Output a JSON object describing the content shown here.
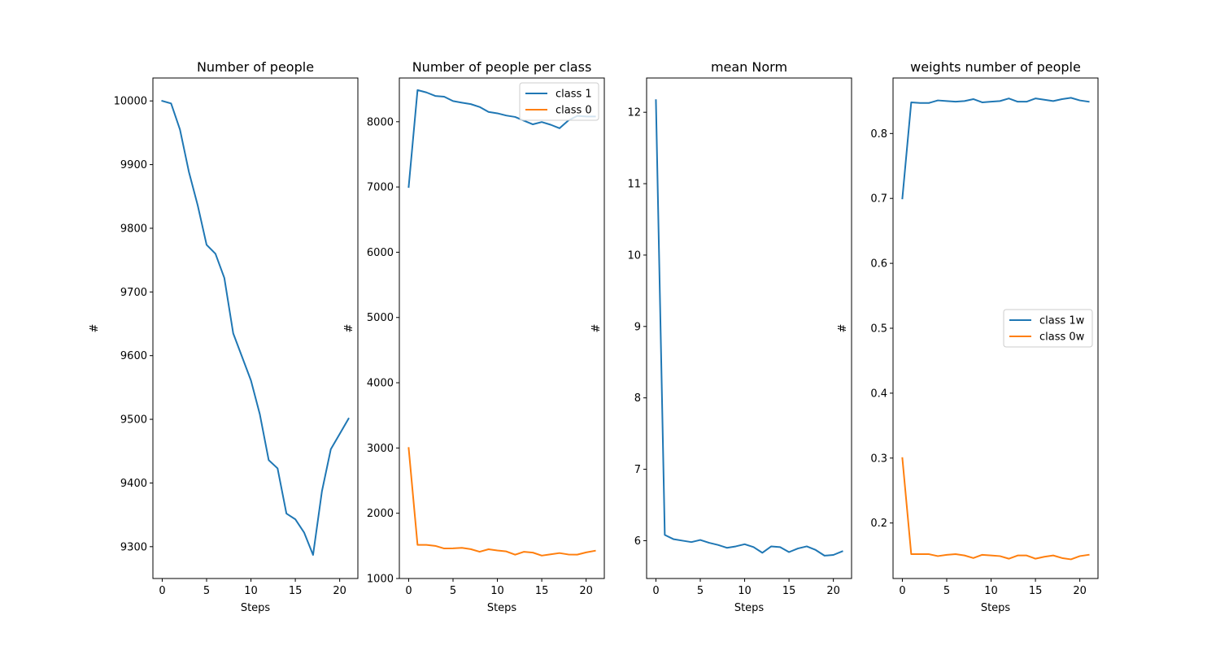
{
  "colors": {
    "series_blue": "#1f77b4",
    "series_orange": "#ff7f0e",
    "axes": "#000000",
    "legend_border": "#cccccc",
    "background": "#ffffff"
  },
  "chart_data": [
    {
      "type": "line",
      "title": "Number of people",
      "xlabel": "Steps",
      "ylabel": "#",
      "x": [
        0,
        1,
        2,
        3,
        4,
        5,
        6,
        7,
        8,
        9,
        10,
        11,
        12,
        13,
        14,
        15,
        16,
        17,
        18,
        19,
        20,
        21
      ],
      "xlim": [
        -1.05,
        22.05
      ],
      "ylim": [
        9250,
        10036
      ],
      "xticks": [
        0,
        5,
        10,
        15,
        20
      ],
      "yticks": [
        9300,
        9400,
        9500,
        9600,
        9700,
        9800,
        9900,
        10000
      ],
      "grid": false,
      "legend": null,
      "series": [
        {
          "color": "#1f77b4",
          "values": [
            10000,
            9996,
            9955,
            9889,
            9836,
            9774,
            9760,
            9722,
            9635,
            9598,
            9561,
            9508,
            9436,
            9423,
            9352,
            9343,
            9322,
            9287,
            9387,
            9453,
            9477,
            9501
          ]
        }
      ]
    },
    {
      "type": "line",
      "title": "Number of people per class",
      "xlabel": "Steps",
      "ylabel": "#",
      "x": [
        0,
        1,
        2,
        3,
        4,
        5,
        6,
        7,
        8,
        9,
        10,
        11,
        12,
        13,
        14,
        15,
        16,
        17,
        18,
        19,
        20,
        21
      ],
      "xlim": [
        -1.05,
        22.05
      ],
      "ylim": [
        1000,
        8670
      ],
      "xticks": [
        0,
        5,
        10,
        15,
        20
      ],
      "yticks": [
        1000,
        2000,
        3000,
        4000,
        5000,
        6000,
        7000,
        8000
      ],
      "grid": false,
      "legend": "top-right",
      "series": [
        {
          "name": "class 1",
          "color": "#1f77b4",
          "values": [
            7000,
            8485,
            8449,
            8395,
            8384,
            8317,
            8292,
            8270,
            8226,
            8150,
            8129,
            8095,
            8073,
            8015,
            7960,
            7995,
            7954,
            7900,
            8019,
            8090,
            8080,
            8080
          ]
        },
        {
          "name": "class 0",
          "color": "#ff7f0e",
          "values": [
            3000,
            1515,
            1515,
            1500,
            1460,
            1463,
            1470,
            1450,
            1410,
            1448,
            1430,
            1415,
            1365,
            1410,
            1397,
            1351,
            1370,
            1390,
            1368,
            1366,
            1400,
            1425
          ]
        }
      ]
    },
    {
      "type": "line",
      "title": "mean Norm",
      "xlabel": "Steps",
      "ylabel": "#",
      "x": [
        0,
        1,
        2,
        3,
        4,
        5,
        6,
        7,
        8,
        9,
        10,
        11,
        12,
        13,
        14,
        15,
        16,
        17,
        18,
        19,
        20,
        21
      ],
      "xlim": [
        -1.05,
        22.05
      ],
      "ylim": [
        5.47,
        12.48
      ],
      "xticks": [
        0,
        5,
        10,
        15,
        20
      ],
      "yticks": [
        6,
        7,
        8,
        9,
        10,
        11,
        12
      ],
      "grid": false,
      "legend": null,
      "series": [
        {
          "color": "#1f77b4",
          "values": [
            12.17,
            6.08,
            6.02,
            6.0,
            5.98,
            6.01,
            5.97,
            5.94,
            5.9,
            5.92,
            5.95,
            5.91,
            5.83,
            5.92,
            5.91,
            5.84,
            5.89,
            5.92,
            5.87,
            5.79,
            5.8,
            5.85
          ]
        }
      ]
    },
    {
      "type": "line",
      "title": "weights number of people",
      "xlabel": "Steps",
      "ylabel": "#",
      "x": [
        0,
        1,
        2,
        3,
        4,
        5,
        6,
        7,
        8,
        9,
        10,
        11,
        12,
        13,
        14,
        15,
        16,
        17,
        18,
        19,
        20,
        21
      ],
      "xlim": [
        -1.05,
        22.05
      ],
      "ylim": [
        0.1145,
        0.8855
      ],
      "xticks": [
        0,
        5,
        10,
        15,
        20
      ],
      "yticks": [
        0.2,
        0.3,
        0.4,
        0.5,
        0.6,
        0.7,
        0.8
      ],
      "grid": false,
      "legend": "center-right",
      "series": [
        {
          "name": "class 1w",
          "color": "#1f77b4",
          "values": [
            0.7,
            0.848,
            0.847,
            0.847,
            0.851,
            0.85,
            0.849,
            0.85,
            0.853,
            0.848,
            0.849,
            0.85,
            0.854,
            0.849,
            0.849,
            0.854,
            0.852,
            0.85,
            0.853,
            0.855,
            0.851,
            0.849
          ]
        },
        {
          "name": "class 0w",
          "color": "#ff7f0e",
          "values": [
            0.3,
            0.152,
            0.152,
            0.152,
            0.149,
            0.151,
            0.152,
            0.15,
            0.146,
            0.151,
            0.15,
            0.149,
            0.145,
            0.15,
            0.15,
            0.145,
            0.148,
            0.15,
            0.146,
            0.144,
            0.149,
            0.151
          ]
        }
      ]
    }
  ]
}
